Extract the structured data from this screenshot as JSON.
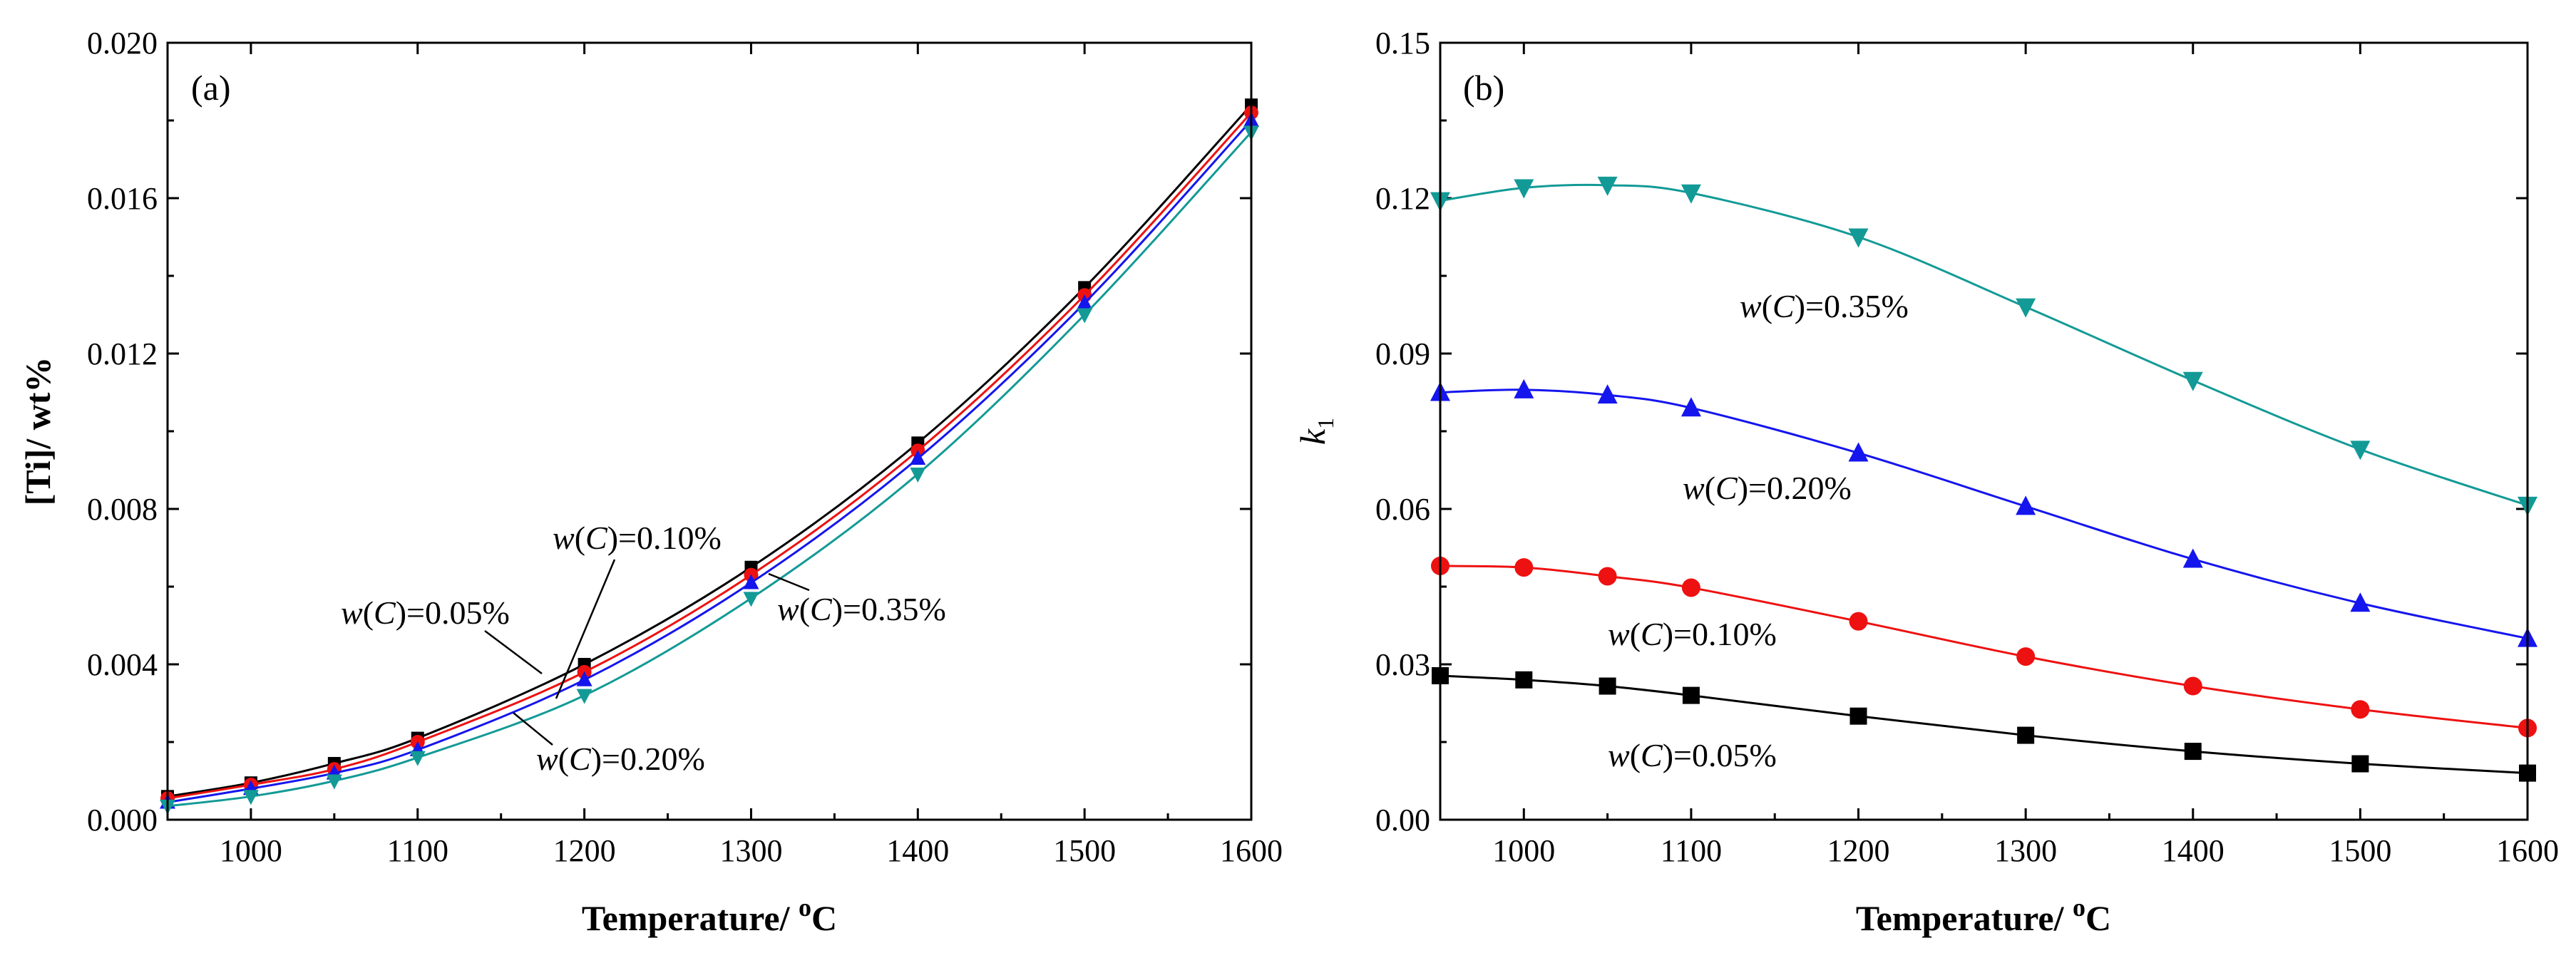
{
  "chart_data": [
    {
      "panel": "(a)",
      "type": "line",
      "xlabel": "Temperature/ °C",
      "ylabel": "[Ti]/ wt%",
      "xlim": [
        950,
        1600
      ],
      "ylim": [
        0,
        0.02
      ],
      "xticks": [
        "1000",
        "1100",
        "1200",
        "1300",
        "1400",
        "1500",
        "1600"
      ],
      "yticks": [
        "0.000",
        "0.004",
        "0.008",
        "0.012",
        "0.016",
        "0.020"
      ],
      "x": [
        950,
        1000,
        1050,
        1100,
        1200,
        1300,
        1400,
        1500,
        1600
      ],
      "series": [
        {
          "name": "w(C)=0.05%",
          "color": "#000000",
          "marker": "square",
          "values": [
            0.0006,
            0.00095,
            0.00145,
            0.0021,
            0.004,
            0.0065,
            0.0097,
            0.0137,
            0.0184
          ]
        },
        {
          "name": "w(C)=0.10%",
          "color": "#ee1111",
          "marker": "circle",
          "values": [
            0.00055,
            0.0009,
            0.0013,
            0.002,
            0.0038,
            0.0063,
            0.0095,
            0.0135,
            0.0182
          ]
        },
        {
          "name": "w(C)=0.20%",
          "color": "#1515ee",
          "marker": "triangle-up",
          "values": [
            0.00045,
            0.0008,
            0.0012,
            0.0018,
            0.0036,
            0.0061,
            0.0093,
            0.0133,
            0.018
          ]
        },
        {
          "name": "w(C)=0.35%",
          "color": "#139a96",
          "marker": "triangle-down",
          "values": [
            0.00035,
            0.0006,
            0.001,
            0.0016,
            0.0032,
            0.0057,
            0.0089,
            0.013,
            0.0177
          ]
        }
      ],
      "annotations": [
        {
          "prefix": "w",
          "var": "C",
          "value": "=0.10%"
        },
        {
          "prefix": "w",
          "var": "C",
          "value": "=0.05%"
        },
        {
          "prefix": "w",
          "var": "C",
          "value": "=0.35%"
        },
        {
          "prefix": "w",
          "var": "C",
          "value": "=0.20%"
        }
      ]
    },
    {
      "panel": "(b)",
      "type": "line",
      "xlabel": "Temperature/ °C",
      "ylabel": "k",
      "ylabel_sub": "1",
      "xlim": [
        950,
        1600
      ],
      "ylim": [
        0,
        0.15
      ],
      "xticks": [
        "1000",
        "1100",
        "1200",
        "1300",
        "1400",
        "1500",
        "1600"
      ],
      "yticks": [
        "0.00",
        "0.03",
        "0.06",
        "0.09",
        "0.12",
        "0.15"
      ],
      "x": [
        950,
        1000,
        1050,
        1100,
        1200,
        1300,
        1400,
        1500,
        1600
      ],
      "series": [
        {
          "name": "w(C)=0.05%",
          "color": "#000000",
          "marker": "square",
          "values": [
            0.0278,
            0.027,
            0.0258,
            0.024,
            0.02,
            0.0163,
            0.0132,
            0.0108,
            0.009
          ]
        },
        {
          "name": "w(C)=0.10%",
          "color": "#ee1111",
          "marker": "circle",
          "values": [
            0.049,
            0.0487,
            0.047,
            0.0448,
            0.0383,
            0.0315,
            0.0258,
            0.0213,
            0.0177
          ]
        },
        {
          "name": "w(C)=0.20%",
          "color": "#1515ee",
          "marker": "triangle-up",
          "values": [
            0.0825,
            0.083,
            0.082,
            0.0795,
            0.0708,
            0.0605,
            0.0503,
            0.0418,
            0.035
          ]
        },
        {
          "name": "w(C)=0.35%",
          "color": "#139a96",
          "marker": "triangle-down",
          "values": [
            0.1195,
            0.122,
            0.1225,
            0.121,
            0.1125,
            0.099,
            0.0848,
            0.0715,
            0.0607
          ]
        }
      ],
      "annotations": [
        {
          "prefix": "w",
          "var": "C",
          "value": "=0.35%"
        },
        {
          "prefix": "w",
          "var": "C",
          "value": "=0.20%"
        },
        {
          "prefix": "w",
          "var": "C",
          "value": "=0.10%"
        },
        {
          "prefix": "w",
          "var": "C",
          "value": "=0.05%"
        }
      ]
    }
  ]
}
